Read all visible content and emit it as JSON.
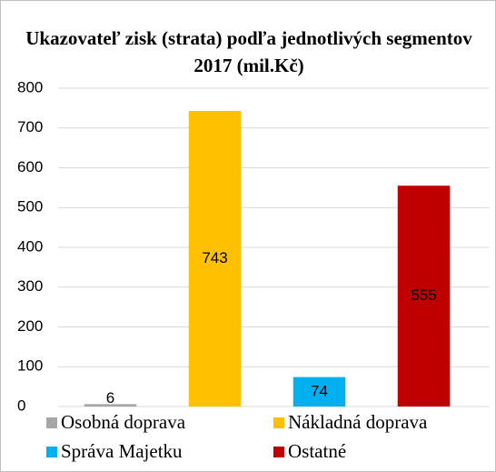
{
  "chart_data": {
    "type": "bar",
    "title": "Ukazovateľ zisk (strata) podľa jednotlivých segmentov 2017 (mil.Kč)",
    "categories": [
      "Osobná doprava",
      "Nákladná doprava",
      "Správa Majetku",
      "Ostatné"
    ],
    "values": [
      6,
      743,
      74,
      555
    ],
    "colors": [
      "#a6a6a6",
      "#ffc000",
      "#00b0f0",
      "#c00000"
    ],
    "ylim": [
      0,
      800
    ],
    "yticks": [
      0,
      100,
      200,
      300,
      400,
      500,
      600,
      700,
      800
    ],
    "grid": true,
    "legend": "bottom"
  }
}
